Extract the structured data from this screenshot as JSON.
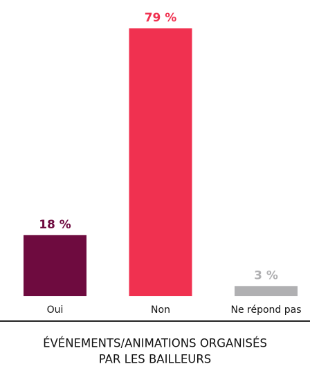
{
  "chart_data": {
    "type": "bar",
    "title": [
      "ÉVÉNEMENTS/ANIMATIONS ORGANISÉS",
      "PAR LES BAILLEURS"
    ],
    "categories": [
      "Oui",
      "Non",
      "Ne répond pas"
    ],
    "values": [
      18,
      79,
      3
    ],
    "value_labels": [
      "18 %",
      "79 %",
      "3 %"
    ],
    "colors": [
      "#6e0b3f",
      "#f03150",
      "#b0b0b2"
    ]
  }
}
